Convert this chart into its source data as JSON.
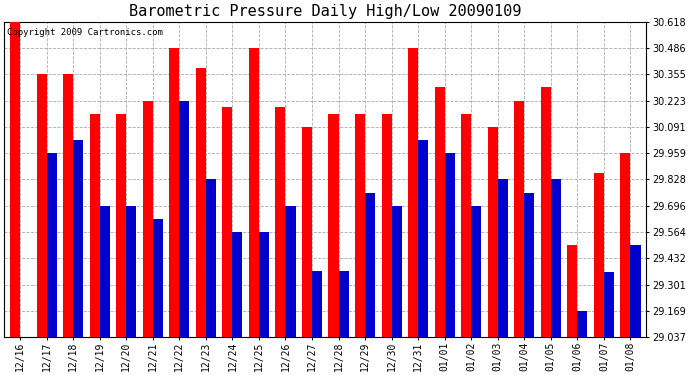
{
  "title": "Barometric Pressure Daily High/Low 20090109",
  "copyright": "Copyright 2009 Cartronics.com",
  "dates": [
    "12/16",
    "12/17",
    "12/18",
    "12/19",
    "12/20",
    "12/21",
    "12/22",
    "12/23",
    "12/24",
    "12/25",
    "12/26",
    "12/27",
    "12/28",
    "12/29",
    "12/30",
    "12/31",
    "01/01",
    "01/02",
    "01/03",
    "01/04",
    "01/05",
    "01/06",
    "01/07",
    "01/08"
  ],
  "highs": [
    30.618,
    30.355,
    30.355,
    30.157,
    30.157,
    30.223,
    30.486,
    30.388,
    30.19,
    30.486,
    30.19,
    30.091,
    30.157,
    30.157,
    30.157,
    30.486,
    30.289,
    30.157,
    30.091,
    30.223,
    30.289,
    29.498,
    29.861,
    29.959
  ],
  "lows": [
    29.037,
    29.959,
    30.025,
    29.696,
    29.696,
    29.63,
    30.223,
    29.828,
    29.564,
    29.564,
    29.696,
    29.367,
    29.367,
    29.762,
    29.696,
    30.025,
    29.959,
    29.696,
    29.828,
    29.762,
    29.828,
    29.169,
    29.366,
    29.498
  ],
  "high_color": "#ff0000",
  "low_color": "#0000cc",
  "bg_color": "#ffffff",
  "grid_color": "#aaaaaa",
  "ylim_min": 29.037,
  "ylim_max": 30.618,
  "yticks": [
    29.037,
    29.169,
    29.301,
    29.432,
    29.564,
    29.696,
    29.828,
    29.959,
    30.091,
    30.223,
    30.355,
    30.486,
    30.618
  ],
  "bar_width": 0.38,
  "title_fontsize": 11,
  "tick_fontsize": 7,
  "copyright_fontsize": 6.5
}
